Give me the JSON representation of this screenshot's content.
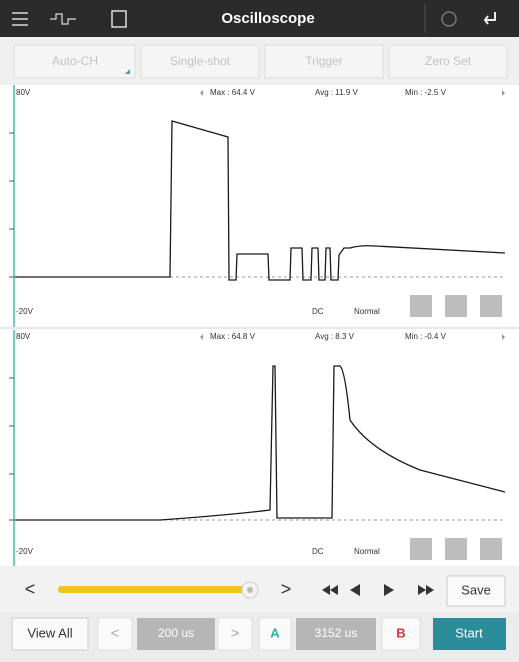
{
  "header": {
    "title": "Oscilloscope"
  },
  "toolbar": [
    "Auto-CH",
    "Single-shot",
    "Trigger",
    "Zero Set"
  ],
  "channels": [
    {
      "top": "80V",
      "max": "Max : 64.4 V",
      "avg": "Avg : 11.9 V",
      "min": "Min : -2.5 V",
      "bottom": "-20V",
      "coupling": "DC",
      "mode": "Normal"
    },
    {
      "top": "80V",
      "max": "Max : 64.8 V",
      "avg": "Avg : 8.3 V",
      "min": "Min : -0.4 V",
      "bottom": "-20V",
      "coupling": "DC",
      "mode": "Normal"
    }
  ],
  "playback": {
    "prev": "<",
    "next": ">",
    "save": "Save"
  },
  "footer": {
    "view_all": "View All",
    "prev": "<",
    "timebase": "200 us",
    "next": ">",
    "cursor_a": "A",
    "cursor_position": "3152 us",
    "cursor_b": "B",
    "start": "Start"
  }
}
